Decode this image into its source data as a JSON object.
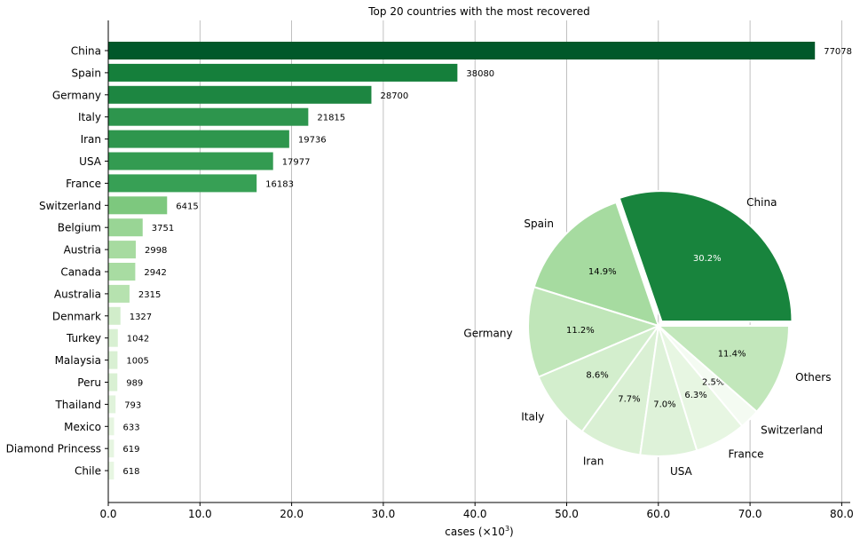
{
  "chart_data": [
    {
      "type": "bar",
      "orientation": "horizontal",
      "title": "Top 20 countries with the most recovered",
      "xlabel": "cases (×10³)",
      "xlabel_main": "cases (×10",
      "xlabel_sup": "3",
      "xlabel_end": ")",
      "xlim": [
        0,
        80.8
      ],
      "xticks": [
        0,
        10,
        20,
        30,
        40,
        50,
        60,
        70,
        80
      ],
      "xtick_labels": [
        "0.0",
        "10.0",
        "20.0",
        "30.0",
        "40.0",
        "50.0",
        "60.0",
        "70.0",
        "80.0"
      ],
      "grid": "vertical",
      "categories": [
        "China",
        "Spain",
        "Germany",
        "Italy",
        "Iran",
        "USA",
        "France",
        "Switzerland",
        "Belgium",
        "Austria",
        "Canada",
        "Australia",
        "Denmark",
        "Turkey",
        "Malaysia",
        "Peru",
        "Thailand",
        "Mexico",
        "Diamond Princess",
        "Chile"
      ],
      "values": [
        77078,
        38080,
        28700,
        21815,
        19736,
        17977,
        16183,
        6415,
        3751,
        2998,
        2942,
        2315,
        1327,
        1042,
        1005,
        989,
        793,
        633,
        619,
        618
      ],
      "colors": [
        "#00582a",
        "#157f3b",
        "#1d8641",
        "#2d954d",
        "#2e964d",
        "#339b51",
        "#37a055",
        "#7dc87e",
        "#99d595",
        "#a7dba0",
        "#a8dca2",
        "#b6e2af",
        "#d1edca",
        "#d8f0d2",
        "#d9f0d3",
        "#d9f0d3",
        "#e0f3db",
        "#e6f5e1",
        "#e6f5e1",
        "#e7f6e2"
      ]
    },
    {
      "type": "pie",
      "categories": [
        "China",
        "Spain",
        "Germany",
        "Italy",
        "Iran",
        "USA",
        "France",
        "Switzerland",
        "Others"
      ],
      "percents": [
        "30.2%",
        "14.9%",
        "11.2%",
        "8.6%",
        "7.7%",
        "7.0%",
        "6.3%",
        "2.5%",
        "11.4%"
      ],
      "values": [
        30.2,
        14.9,
        11.2,
        8.6,
        7.7,
        7.0,
        6.3,
        2.5,
        11.4
      ],
      "colors": [
        "#18843d",
        "#a6dba0",
        "#c0e6b9",
        "#d3eecd",
        "#daf0d4",
        "#def2d9",
        "#e7f6e2",
        "#f4fbf2",
        "#c2e7bb"
      ],
      "pct_colors": [
        "#ffffff",
        "#000000",
        "#000000",
        "#000000",
        "#000000",
        "#000000",
        "#000000",
        "#000000",
        "#000000"
      ],
      "explode": [
        1,
        0,
        0,
        0,
        0,
        0,
        0,
        0,
        0
      ],
      "start_angle_deg": 0,
      "direction": "counterclockwise"
    }
  ]
}
